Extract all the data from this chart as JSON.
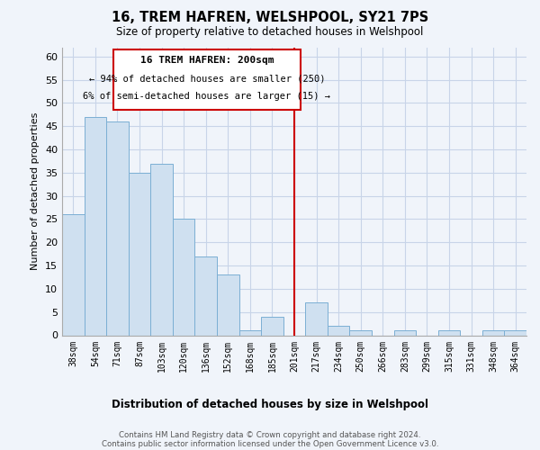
{
  "title": "16, TREM HAFREN, WELSHPOOL, SY21 7PS",
  "subtitle": "Size of property relative to detached houses in Welshpool",
  "xlabel": "Distribution of detached houses by size in Welshpool",
  "ylabel": "Number of detached properties",
  "bar_labels": [
    "38sqm",
    "54sqm",
    "71sqm",
    "87sqm",
    "103sqm",
    "120sqm",
    "136sqm",
    "152sqm",
    "168sqm",
    "185sqm",
    "201sqm",
    "217sqm",
    "234sqm",
    "250sqm",
    "266sqm",
    "283sqm",
    "299sqm",
    "315sqm",
    "331sqm",
    "348sqm",
    "364sqm"
  ],
  "bar_values": [
    26,
    47,
    46,
    35,
    37,
    25,
    17,
    13,
    1,
    4,
    0,
    7,
    2,
    1,
    0,
    1,
    0,
    1,
    0,
    1,
    1
  ],
  "bar_color": "#cfe0f0",
  "bar_edge_color": "#7bafd4",
  "ylim": [
    0,
    62
  ],
  "yticks": [
    0,
    5,
    10,
    15,
    20,
    25,
    30,
    35,
    40,
    45,
    50,
    55,
    60
  ],
  "vline_color": "#cc0000",
  "annotation_title": "16 TREM HAFREN: 200sqm",
  "annotation_line1": "← 94% of detached houses are smaller (250)",
  "annotation_line2": "6% of semi-detached houses are larger (15) →",
  "footer_line1": "Contains HM Land Registry data © Crown copyright and database right 2024.",
  "footer_line2": "Contains public sector information licensed under the Open Government Licence v3.0.",
  "background_color": "#f0f4fa",
  "grid_color": "#c8d4e8"
}
